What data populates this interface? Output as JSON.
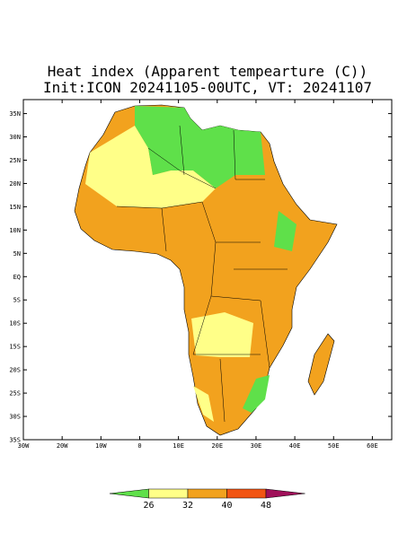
{
  "map": {
    "title": "Heat index (Apparent tempearture (C))",
    "subtitle": "Init:ICON 20241105-00UTC, VT: 20241107",
    "xlim": [
      -30,
      65
    ],
    "ylim": [
      -35,
      38
    ],
    "lat_ticks": [
      {
        "value": 35,
        "label": "35N"
      },
      {
        "value": 30,
        "label": "30N"
      },
      {
        "value": 25,
        "label": "25N"
      },
      {
        "value": 20,
        "label": "20N"
      },
      {
        "value": 15,
        "label": "15N"
      },
      {
        "value": 10,
        "label": "10N"
      },
      {
        "value": 5,
        "label": "5N"
      },
      {
        "value": 0,
        "label": "EQ"
      },
      {
        "value": -5,
        "label": "5S"
      },
      {
        "value": -10,
        "label": "10S"
      },
      {
        "value": -15,
        "label": "15S"
      },
      {
        "value": -20,
        "label": "20S"
      },
      {
        "value": -25,
        "label": "25S"
      },
      {
        "value": -30,
        "label": "30S"
      },
      {
        "value": -35,
        "label": "35S"
      }
    ],
    "lon_ticks": [
      {
        "value": -30,
        "label": "30W"
      },
      {
        "value": -20,
        "label": "20W"
      },
      {
        "value": -10,
        "label": "10W"
      },
      0,
      {
        "value": 10,
        "label": "10E"
      },
      {
        "value": 20,
        "label": "20E"
      },
      {
        "value": 30,
        "label": "30E"
      },
      {
        "value": 40,
        "label": "40E"
      },
      {
        "value": 50,
        "label": "50E"
      },
      {
        "value": 60,
        "label": "60E"
      }
    ],
    "colorbar": {
      "levels": [
        26,
        32,
        40,
        48
      ],
      "colors": [
        "#5fe04a",
        "#ffff88",
        "#f2a21e",
        "#f25412",
        "#a0105a"
      ]
    }
  }
}
